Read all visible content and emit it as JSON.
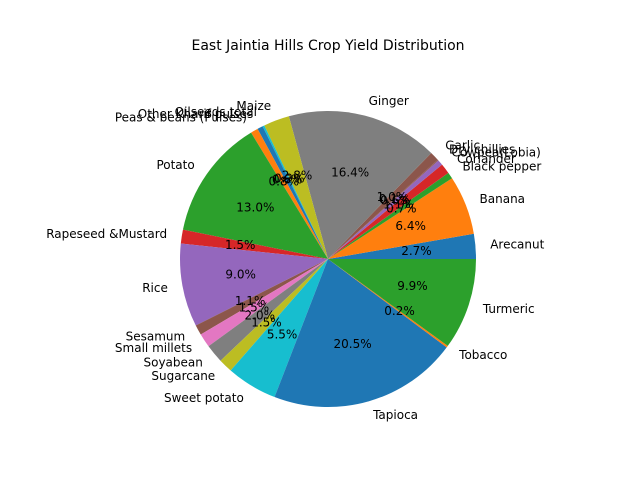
{
  "chart_data": {
    "type": "pie",
    "title": "East Jaintia Hills Crop Yield Distribution",
    "start_angle_deg": 0,
    "direction": "counterclockwise",
    "slices": [
      {
        "label": "Arecanut",
        "value": 2.7,
        "pct_label": "2.7%",
        "color": "#1f77b4"
      },
      {
        "label": "Banana",
        "value": 6.4,
        "pct_label": "6.4%",
        "color": "#ff7f0e"
      },
      {
        "label": "Black pepper",
        "value": 0.7,
        "pct_label": "0.7%",
        "color": "#2ca02c"
      },
      {
        "label": "Coriander",
        "value": 1.1,
        "pct_label": "1.1%",
        "color": "#d62728"
      },
      {
        "label": "Cowpea(Lobia)",
        "value": 0.6,
        "pct_label": "0.6%",
        "color": "#9467bd"
      },
      {
        "label": "Dry chillies",
        "value": 0.1,
        "pct_label": "0.1%",
        "color": "#8c564b"
      },
      {
        "label": "Garlic",
        "value": 1.0,
        "pct_label": "1.0%",
        "color": "#8c564b"
      },
      {
        "label": "Ginger",
        "value": 16.4,
        "pct_label": "16.4%",
        "color": "#7f7f7f"
      },
      {
        "label": "Maize",
        "value": 2.8,
        "pct_label": "2.8%",
        "color": "#bcbd22"
      },
      {
        "label": "Oilseeds total",
        "value": 0.2,
        "pct_label": "0.2%",
        "color": "#17becf"
      },
      {
        "label": "Other Kharif pulses",
        "value": 0.6,
        "pct_label": "0.6%",
        "color": "#1f77b4"
      },
      {
        "label": "Peas & beans (Pulses)",
        "value": 0.8,
        "pct_label": "0.8%",
        "color": "#ff7f0e"
      },
      {
        "label": "Potato",
        "value": 13.0,
        "pct_label": "13.0%",
        "color": "#2ca02c"
      },
      {
        "label": "Rapeseed &Mustard",
        "value": 1.5,
        "pct_label": "1.5%",
        "color": "#d62728"
      },
      {
        "label": "Rice",
        "value": 9.0,
        "pct_label": "9.0%",
        "color": "#9467bd"
      },
      {
        "label": "Sesamum",
        "value": 1.1,
        "pct_label": "1.1%",
        "color": "#8c564b"
      },
      {
        "label": "Small millets",
        "value": 1.5,
        "pct_label": "1.5%",
        "color": "#e377c2"
      },
      {
        "label": "Soyabean",
        "value": 2.0,
        "pct_label": "2.0%",
        "color": "#7f7f7f"
      },
      {
        "label": "Sugarcane",
        "value": 1.5,
        "pct_label": "1.5%",
        "color": "#bcbd22"
      },
      {
        "label": "Sweet potato",
        "value": 5.5,
        "pct_label": "5.5%",
        "color": "#17becf"
      },
      {
        "label": "Tapioca",
        "value": 20.5,
        "pct_label": "20.5%",
        "color": "#1f77b4"
      },
      {
        "label": "Tobacco",
        "value": 0.2,
        "pct_label": "0.2%",
        "color": "#ff7f0e"
      },
      {
        "label": "Turmeric",
        "value": 9.9,
        "pct_label": "9.9%",
        "color": "#2ca02c"
      }
    ]
  }
}
